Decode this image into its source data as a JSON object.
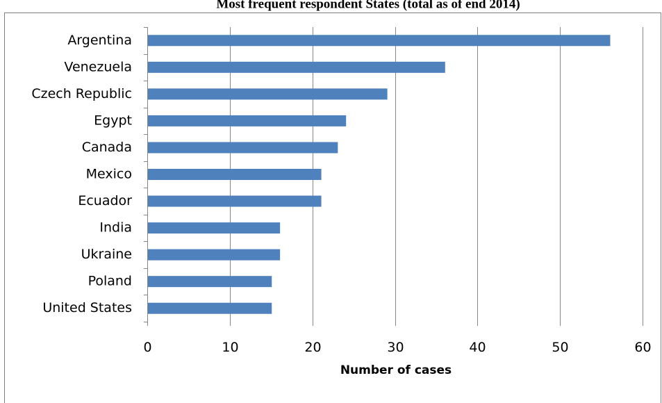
{
  "chart_data": {
    "type": "bar",
    "orientation": "horizontal",
    "title": "Most frequent respondent States (total as of end 2014)",
    "xlabel": "Number of cases",
    "ylabel": "",
    "categories": [
      "Argentina",
      "Venezuela",
      "Czech Republic",
      "Egypt",
      "Canada",
      "Mexico",
      "Ecuador",
      "India",
      "Ukraine",
      "Poland",
      "United States"
    ],
    "values": [
      56,
      36,
      29,
      24,
      23,
      21,
      21,
      16,
      16,
      15,
      15
    ],
    "xlim": [
      0,
      60
    ],
    "x_ticks": [
      0,
      10,
      20,
      30,
      40,
      50,
      60
    ],
    "grid": "vertical",
    "legend": "none",
    "bar_color": "#4f81bd"
  }
}
